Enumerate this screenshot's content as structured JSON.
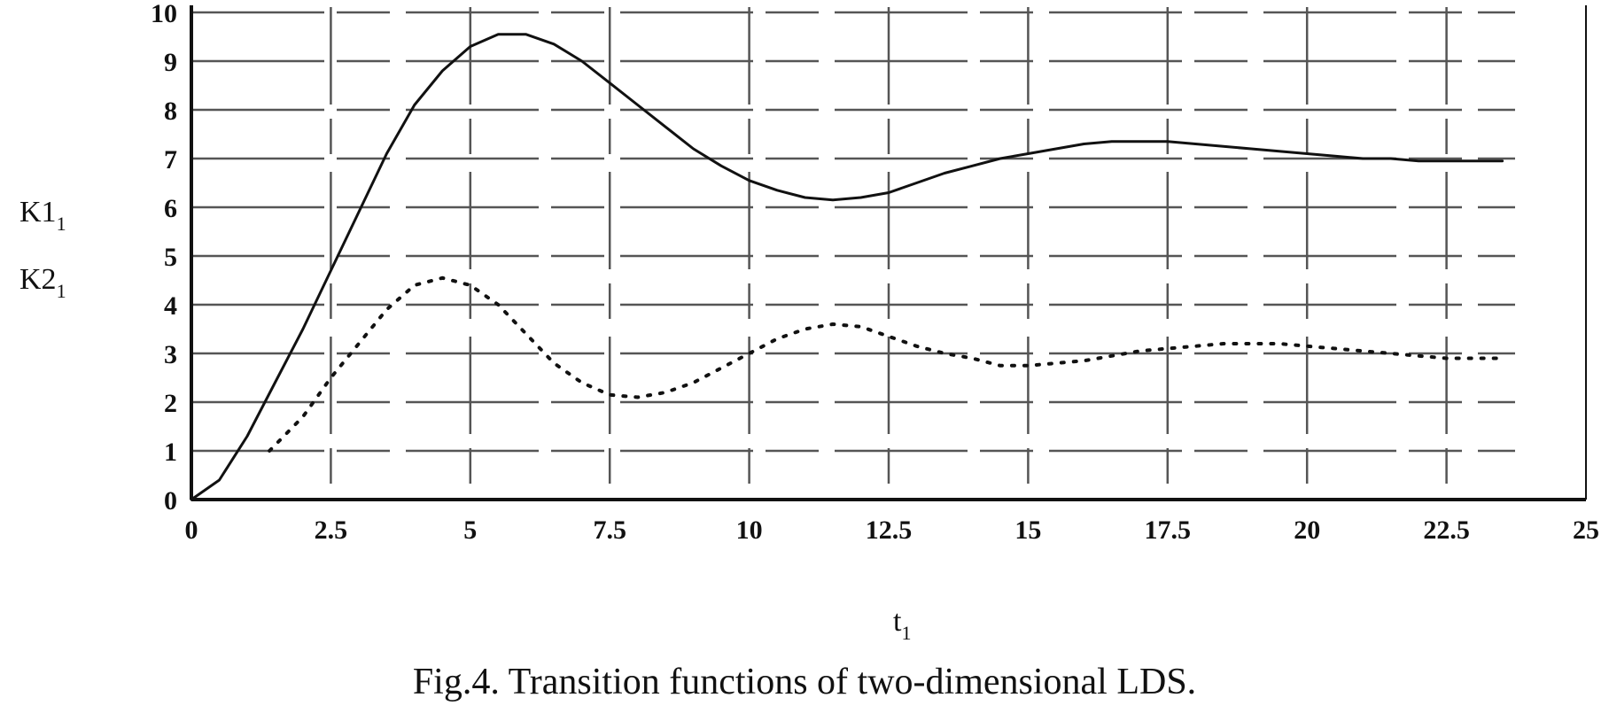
{
  "chart_data": {
    "type": "line",
    "title": "",
    "xlabel": "t",
    "xlabel_sub": "1",
    "ylabels": [
      {
        "name": "K1",
        "sub": "1"
      },
      {
        "name": "K2",
        "sub": "1"
      }
    ],
    "xlim": [
      0,
      25
    ],
    "ylim": [
      0,
      10
    ],
    "x_ticks": [
      {
        "v": 0,
        "label": "0"
      },
      {
        "v": 2.5,
        "label": "2.5"
      },
      {
        "v": 5,
        "label": "5"
      },
      {
        "v": 7.5,
        "label": "7.5"
      },
      {
        "v": 10,
        "label": "10"
      },
      {
        "v": 12.5,
        "label": "12.5"
      },
      {
        "v": 15,
        "label": "15"
      },
      {
        "v": 17.5,
        "label": "17.5"
      },
      {
        "v": 20,
        "label": "20"
      },
      {
        "v": 22.5,
        "label": "22.5"
      },
      {
        "v": 25,
        "label": "25"
      }
    ],
    "y_ticks": [
      {
        "v": 0,
        "label": "0"
      },
      {
        "v": 1,
        "label": "1"
      },
      {
        "v": 2,
        "label": "2"
      },
      {
        "v": 3,
        "label": "3"
      },
      {
        "v": 4,
        "label": "4"
      },
      {
        "v": 5,
        "label": "5"
      },
      {
        "v": 6,
        "label": "6"
      },
      {
        "v": 7,
        "label": "7"
      },
      {
        "v": 8,
        "label": "8"
      },
      {
        "v": 9,
        "label": "9"
      },
      {
        "v": 10,
        "label": "10"
      }
    ],
    "grid": true,
    "legend": "none",
    "series": [
      {
        "style": "solid",
        "x": [
          0,
          0.5,
          1,
          1.5,
          2,
          2.5,
          3,
          3.5,
          4,
          4.5,
          5,
          5.5,
          6,
          6.5,
          7,
          7.5,
          8,
          8.5,
          9,
          9.5,
          10,
          10.5,
          11,
          11.5,
          12,
          12.5,
          13,
          13.5,
          14,
          14.5,
          15,
          15.5,
          16,
          16.5,
          17,
          17.5,
          18,
          18.5,
          19,
          19.5,
          20,
          20.5,
          21,
          21.5,
          22,
          22.5,
          23,
          23.5
        ],
        "y": [
          0,
          0.4,
          1.3,
          2.4,
          3.5,
          4.7,
          5.9,
          7.1,
          8.1,
          8.8,
          9.3,
          9.55,
          9.55,
          9.35,
          9.0,
          8.55,
          8.1,
          7.65,
          7.2,
          6.85,
          6.55,
          6.35,
          6.2,
          6.15,
          6.2,
          6.3,
          6.5,
          6.7,
          6.85,
          7.0,
          7.1,
          7.2,
          7.3,
          7.35,
          7.35,
          7.35,
          7.3,
          7.25,
          7.2,
          7.15,
          7.1,
          7.05,
          7.0,
          7.0,
          6.95,
          6.95,
          6.95,
          6.95
        ]
      },
      {
        "style": "dotted",
        "x": [
          1.4,
          2,
          2.5,
          3,
          3.5,
          4,
          4.5,
          5,
          5.5,
          6,
          6.5,
          7,
          7.5,
          8,
          8.5,
          9,
          9.5,
          10,
          10.5,
          11,
          11.5,
          12,
          12.5,
          13,
          13.5,
          14,
          14.5,
          15,
          15.5,
          16,
          16.5,
          17,
          17.5,
          18,
          18.5,
          19,
          19.5,
          20,
          20.5,
          21,
          21.5,
          22,
          22.5,
          23,
          23.5
        ],
        "y": [
          1.0,
          1.7,
          2.5,
          3.2,
          3.9,
          4.4,
          4.55,
          4.4,
          4.0,
          3.4,
          2.8,
          2.4,
          2.15,
          2.1,
          2.2,
          2.4,
          2.7,
          3.0,
          3.3,
          3.5,
          3.6,
          3.55,
          3.35,
          3.15,
          3.0,
          2.9,
          2.75,
          2.75,
          2.8,
          2.85,
          2.95,
          3.05,
          3.1,
          3.15,
          3.2,
          3.2,
          3.2,
          3.15,
          3.1,
          3.05,
          3.0,
          2.95,
          2.9,
          2.9,
          2.9
        ]
      }
    ]
  },
  "caption": "Fig.4. Transition functions of two-dimensional LDS."
}
